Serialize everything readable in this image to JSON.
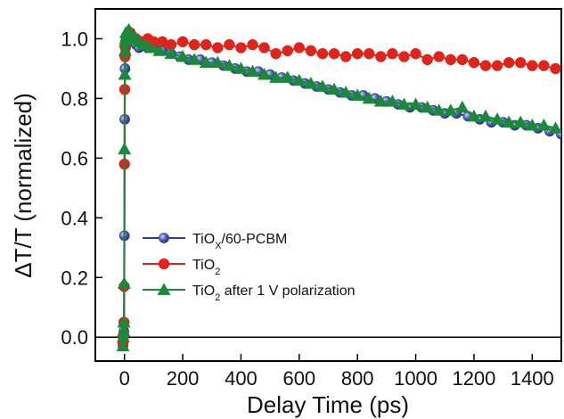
{
  "chart_data": {
    "type": "scatter",
    "xlabel": "Delay Time (ps)",
    "ylabel": "ΔT/T (normalized)",
    "xlim": [
      -100,
      1500
    ],
    "ylim": [
      -0.08,
      1.1
    ],
    "xticks": [
      0,
      200,
      400,
      600,
      800,
      1000,
      1200,
      1400
    ],
    "xtick_labels": [
      "0",
      "200",
      "400",
      "600",
      "800",
      "1000",
      "1200",
      "1400"
    ],
    "yticks": [
      0.0,
      0.2,
      0.4,
      0.6,
      0.8,
      1.0
    ],
    "ytick_labels": [
      "0.0",
      "0.2",
      "0.4",
      "0.6",
      "0.8",
      "1.0"
    ],
    "zero_line": 0,
    "grid": false,
    "legend_position": "lower-left",
    "series": [
      {
        "name_main": "TiO",
        "name_sub": "X",
        "name_rest": "/60-PCBM",
        "color": "#2b3f9e",
        "marker": "circle-shaded",
        "x": [
          -5,
          -4,
          -3,
          -2,
          -1,
          0,
          1,
          2,
          3,
          4,
          5,
          6,
          7,
          8,
          10,
          12,
          15,
          20,
          25,
          30,
          40,
          50,
          60,
          80,
          100,
          130,
          160,
          190,
          220,
          260,
          300,
          340,
          380,
          420,
          460,
          500,
          540,
          580,
          620,
          660,
          700,
          740,
          780,
          820,
          860,
          900,
          940,
          980,
          1020,
          1060,
          1100,
          1140,
          1180,
          1220,
          1260,
          1300,
          1340,
          1380,
          1420,
          1460,
          1500
        ],
        "y": [
          -0.03,
          -0.01,
          0.0,
          0.02,
          0.05,
          0.34,
          0.73,
          0.9,
          0.95,
          0.97,
          0.98,
          0.99,
          0.98,
          0.99,
          1.0,
          0.99,
          1.0,
          0.99,
          1.0,
          0.99,
          0.98,
          0.97,
          0.98,
          0.97,
          0.97,
          0.96,
          0.95,
          0.94,
          0.93,
          0.93,
          0.92,
          0.91,
          0.9,
          0.89,
          0.89,
          0.88,
          0.87,
          0.86,
          0.85,
          0.84,
          0.83,
          0.82,
          0.81,
          0.81,
          0.8,
          0.79,
          0.78,
          0.77,
          0.77,
          0.76,
          0.75,
          0.75,
          0.74,
          0.73,
          0.72,
          0.72,
          0.71,
          0.71,
          0.7,
          0.69,
          0.68
        ]
      },
      {
        "name_main": "TiO",
        "name_sub": "2",
        "name_rest": "",
        "color": "#e2231a",
        "marker": "circle",
        "x": [
          -5,
          -4,
          -3,
          -2,
          -1,
          0,
          1,
          2,
          3,
          4,
          5,
          7,
          10,
          15,
          20,
          25,
          30,
          40,
          60,
          80,
          100,
          130,
          160,
          200,
          240,
          280,
          320,
          360,
          400,
          440,
          480,
          520,
          560,
          600,
          640,
          680,
          720,
          760,
          800,
          840,
          880,
          920,
          960,
          1000,
          1040,
          1080,
          1120,
          1160,
          1200,
          1240,
          1280,
          1320,
          1360,
          1400,
          1440,
          1480
        ],
        "y": [
          -0.02,
          0.0,
          0.01,
          0.05,
          0.17,
          0.58,
          0.83,
          0.94,
          0.97,
          0.98,
          0.99,
          1.0,
          1.01,
          1.0,
          1.02,
          1.01,
          1.0,
          1.0,
          0.99,
          1.0,
          0.99,
          0.99,
          0.98,
          0.99,
          0.98,
          0.98,
          0.97,
          0.98,
          0.97,
          0.98,
          0.97,
          0.95,
          0.96,
          0.97,
          0.96,
          0.95,
          0.95,
          0.94,
          0.95,
          0.95,
          0.94,
          0.95,
          0.94,
          0.95,
          0.93,
          0.94,
          0.93,
          0.93,
          0.92,
          0.91,
          0.91,
          0.92,
          0.92,
          0.91,
          0.91,
          0.9
        ]
      },
      {
        "name_main": "TiO",
        "name_sub": "2",
        "name_rest": " after 1 V polarization",
        "color": "#1a8a3a",
        "marker": "triangle",
        "x": [
          -5,
          -4,
          -3,
          -2,
          -1,
          0,
          1,
          2,
          3,
          4,
          5,
          7,
          10,
          15,
          20,
          25,
          30,
          40,
          50,
          70,
          90,
          120,
          160,
          200,
          240,
          280,
          320,
          360,
          400,
          440,
          480,
          520,
          560,
          600,
          640,
          680,
          720,
          760,
          800,
          840,
          880,
          920,
          960,
          1000,
          1040,
          1080,
          1120,
          1160,
          1200,
          1240,
          1280,
          1320,
          1360,
          1400,
          1440,
          1480
        ],
        "y": [
          -0.03,
          0.0,
          0.02,
          0.05,
          0.18,
          0.63,
          0.88,
          0.96,
          0.99,
          1.0,
          1.02,
          1.01,
          1.02,
          1.03,
          1.02,
          1.01,
          1.0,
          1.0,
          0.99,
          0.98,
          0.97,
          0.96,
          0.95,
          0.94,
          0.93,
          0.92,
          0.92,
          0.91,
          0.9,
          0.89,
          0.88,
          0.87,
          0.87,
          0.86,
          0.85,
          0.84,
          0.83,
          0.82,
          0.81,
          0.8,
          0.79,
          0.79,
          0.78,
          0.78,
          0.77,
          0.76,
          0.76,
          0.77,
          0.74,
          0.74,
          0.73,
          0.72,
          0.72,
          0.71,
          0.71,
          0.7
        ]
      }
    ]
  }
}
